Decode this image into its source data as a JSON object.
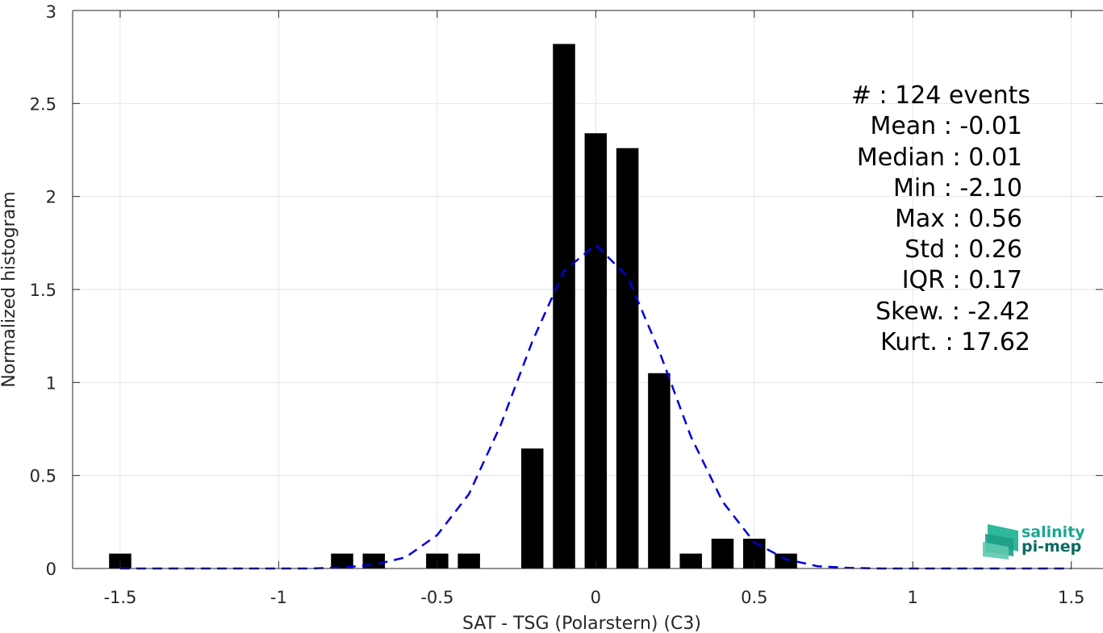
{
  "chart_data": {
    "type": "bar",
    "xlabel": "SAT - TSG (Polarstern) (C3)",
    "ylabel": "Normalized histogram",
    "xlim": [
      -1.65,
      1.6
    ],
    "ylim": [
      0,
      3
    ],
    "grid": true,
    "xticks": [
      -1.5,
      -1,
      -0.5,
      0,
      0.5,
      1,
      1.5
    ],
    "xtick_labels": [
      "-1.5",
      "-1",
      "-0.5",
      "0",
      "0.5",
      "1",
      "1.5"
    ],
    "yticks": [
      0,
      0.5,
      1,
      1.5,
      2,
      2.5,
      3
    ],
    "ytick_labels": [
      "0",
      "0.5",
      "1",
      "1.5",
      "2",
      "2.5",
      "3"
    ],
    "bar_width": 0.07,
    "bars": [
      {
        "x": -1.5,
        "value": 0.08
      },
      {
        "x": -0.8,
        "value": 0.08
      },
      {
        "x": -0.7,
        "value": 0.08
      },
      {
        "x": -0.5,
        "value": 0.08
      },
      {
        "x": -0.4,
        "value": 0.08
      },
      {
        "x": -0.2,
        "value": 0.645
      },
      {
        "x": -0.1,
        "value": 2.82
      },
      {
        "x": 0.0,
        "value": 2.34
      },
      {
        "x": 0.1,
        "value": 2.26
      },
      {
        "x": 0.2,
        "value": 1.05
      },
      {
        "x": 0.3,
        "value": 0.08
      },
      {
        "x": 0.4,
        "value": 0.16
      },
      {
        "x": 0.5,
        "value": 0.16
      },
      {
        "x": 0.6,
        "value": 0.08
      }
    ],
    "fit_curve": {
      "style": "dashed",
      "color": "#0000dd",
      "x": [
        -1.5,
        -1.4,
        -1.3,
        -1.2,
        -1.1,
        -1.0,
        -0.9,
        -0.8,
        -0.7,
        -0.6,
        -0.5,
        -0.4,
        -0.3,
        -0.2,
        -0.1,
        0.0,
        0.1,
        0.2,
        0.3,
        0.4,
        0.5,
        0.6,
        0.7,
        0.8,
        0.9,
        1.0,
        1.1,
        1.2,
        1.3,
        1.4,
        1.5
      ],
      "y": [
        0.0,
        0.0,
        0.0,
        0.0,
        0.0,
        0.0,
        0.0,
        0.005,
        0.02,
        0.06,
        0.18,
        0.4,
        0.77,
        1.22,
        1.6,
        1.74,
        1.57,
        1.17,
        0.71,
        0.36,
        0.14,
        0.05,
        0.012,
        0.003,
        0.0,
        0.0,
        0.0,
        0.0,
        0.0,
        0.0,
        0.0
      ]
    },
    "colors": {
      "bars": "#000000",
      "grid": "#e6e6e6",
      "axes": "#262626"
    }
  },
  "stats": [
    "#  : 124 events",
    "Mean : -0.01",
    "Median : 0.01",
    "Min : -2.10",
    "Max : 0.56",
    "Std : 0.26",
    "IQR : 0.17",
    "Skew. : -2.42",
    "Kurt. : 17.62"
  ],
  "logo": {
    "line1": "salinity",
    "line2": "pi-mep",
    "color1": "#1aa88f",
    "color2": "#0b6b60"
  }
}
